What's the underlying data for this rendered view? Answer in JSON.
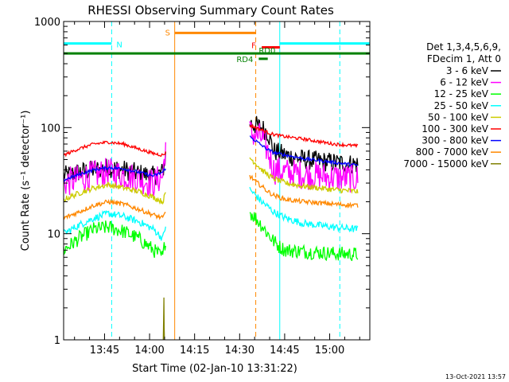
{
  "chart_data": {
    "type": "line",
    "title": "RHESSI Observing Summary Count Rates",
    "xlabel": "Start Time (02-Jan-10 13:31:22)",
    "ylabel": "Count Rate (s⁻¹ detector⁻¹)",
    "yscale": "log",
    "ylim": [
      1,
      1000
    ],
    "xlim_minutes_after_start": [
      0,
      102
    ],
    "x_ticks": [
      {
        "label": "13:45",
        "minutes": 13.63
      },
      {
        "label": "14:00",
        "minutes": 28.63
      },
      {
        "label": "14:15",
        "minutes": 43.63
      },
      {
        "label": "14:30",
        "minutes": 58.63
      },
      {
        "label": "14:45",
        "minutes": 73.63
      },
      {
        "label": "15:00",
        "minutes": 88.63
      }
    ],
    "y_ticks": [
      {
        "label": "1",
        "value": 1
      },
      {
        "label": "10",
        "value": 10
      },
      {
        "label": "100",
        "value": 100
      },
      {
        "label": "1000",
        "value": 1000
      }
    ],
    "legend": {
      "header": [
        "Det 1,3,4,5,6,9,",
        "FDecim 1, Att 0"
      ],
      "placement": "right"
    },
    "series": [
      {
        "name": "3 - 6 keV",
        "color": "#000000",
        "noise": 0.22,
        "segments": [
          {
            "x": [
              0,
              5,
              10,
              15,
              20,
              25,
              30,
              33,
              34
            ],
            "y": [
              35,
              38,
              40,
              42,
              40,
              37,
              35,
              38,
              55
            ]
          },
          {
            "x": [
              62,
              64,
              66,
              68,
              70,
              74,
              80,
              90,
              98
            ],
            "y": [
              110,
              105,
              100,
              90,
              60,
              55,
              50,
              47,
              45
            ]
          }
        ]
      },
      {
        "name": "6 - 12 keV",
        "color": "#ff00ff",
        "noise": 0.32,
        "segments": [
          {
            "x": [
              0,
              5,
              10,
              15,
              20,
              25,
              30,
              33,
              34
            ],
            "y": [
              30,
              33,
              36,
              38,
              36,
              33,
              30,
              35,
              70
            ]
          },
          {
            "x": [
              62,
              64,
              66,
              68,
              70,
              74,
              80,
              90,
              98
            ],
            "y": [
              90,
              85,
              80,
              60,
              40,
              38,
              36,
              34,
              33
            ]
          }
        ]
      },
      {
        "name": "12 - 25 keV",
        "color": "#00ff00",
        "noise": 0.16,
        "segments": [
          {
            "x": [
              0,
              5,
              10,
              15,
              20,
              25,
              30,
              33,
              34
            ],
            "y": [
              7,
              9,
              11,
              11.5,
              10.5,
              9,
              7,
              6,
              9
            ]
          },
          {
            "x": [
              62,
              64,
              66,
              68,
              70,
              72,
              74,
              80,
              90,
              98
            ],
            "y": [
              16,
              14,
              12,
              10,
              8.5,
              7.5,
              7,
              6.8,
              6.5,
              6.4
            ]
          }
        ]
      },
      {
        "name": "25 - 50 keV",
        "color": "#00ffff",
        "noise": 0.08,
        "segments": [
          {
            "x": [
              0,
              5,
              10,
              15,
              20,
              25,
              30,
              33,
              34
            ],
            "y": [
              10,
              12,
              14,
              15.5,
              14.5,
              13,
              11,
              9,
              12
            ]
          },
          {
            "x": [
              62,
              64,
              66,
              68,
              70,
              74,
              80,
              90,
              98
            ],
            "y": [
              26,
              23,
              20,
              18,
              16,
              14,
              12.5,
              11.5,
              11
            ]
          }
        ]
      },
      {
        "name": "50 - 100 keV",
        "color": "#cccc00",
        "noise": 0.06,
        "segments": [
          {
            "x": [
              0,
              5,
              10,
              15,
              20,
              25,
              30,
              33,
              34
            ],
            "y": [
              21,
              24,
              27,
              29,
              27,
              25,
              22,
              20,
              24
            ]
          },
          {
            "x": [
              62,
              64,
              66,
              68,
              70,
              74,
              80,
              90,
              98
            ],
            "y": [
              52,
              46,
              40,
              36,
              33,
              30,
              28,
              26,
              25
            ]
          }
        ]
      },
      {
        "name": "100 - 300 keV",
        "color": "#ff0000",
        "noise": 0.035,
        "segments": [
          {
            "x": [
              0,
              5,
              10,
              15,
              20,
              25,
              30,
              33,
              34
            ],
            "y": [
              55,
              63,
              70,
              73,
              70,
              63,
              57,
              55,
              58
            ]
          },
          {
            "x": [
              62,
              64,
              66,
              68,
              70,
              74,
              80,
              90,
              98
            ],
            "y": [
              105,
              100,
              95,
              90,
              86,
              82,
              78,
              70,
              67
            ]
          }
        ]
      },
      {
        "name": "300 - 800 keV",
        "color": "#0000ff",
        "noise": 0.035,
        "segments": [
          {
            "x": [
              0,
              5,
              10,
              15,
              20,
              25,
              30,
              33,
              34
            ],
            "y": [
              32,
              36,
              40,
              42,
              41,
              38,
              35,
              38,
              42
            ]
          },
          {
            "x": [
              62,
              64,
              66,
              68,
              70,
              74,
              80,
              90,
              98
            ],
            "y": [
              82,
              75,
              68,
              62,
              58,
              55,
              51,
              47,
              44
            ]
          }
        ]
      },
      {
        "name": "800 - 7000 keV",
        "color": "#ff8800",
        "noise": 0.05,
        "segments": [
          {
            "x": [
              0,
              5,
              10,
              15,
              20,
              25,
              30,
              33,
              34
            ],
            "y": [
              14,
              16,
              18.5,
              20,
              19,
              17,
              15,
              14,
              16
            ]
          },
          {
            "x": [
              62,
              64,
              66,
              68,
              70,
              74,
              80,
              90,
              98
            ],
            "y": [
              35,
              31,
              28,
              25,
              23,
              21,
              20,
              19,
              18.5
            ]
          }
        ]
      },
      {
        "name": "7000 - 15000 keV",
        "color": "#808000",
        "noise": 0.0,
        "segments": [
          {
            "x": [
              33.2,
              33.3,
              33.4,
              33.5,
              33.6
            ],
            "y": [
              1,
              1.5,
              2.5,
              1.3,
              1
            ]
          }
        ]
      }
    ],
    "flag_bars": [
      {
        "label": "N",
        "color": "#00ffff",
        "y": 620,
        "x_ranges": [
          [
            0,
            16
          ],
          [
            72,
            102
          ]
        ]
      },
      {
        "label": "S",
        "color": "#ff8800",
        "y": 780,
        "x_ranges": [
          [
            37,
            64
          ]
        ]
      },
      {
        "label": "F",
        "color": "#ff0000",
        "y": 570,
        "x_ranges": [
          [
            66,
            72
          ]
        ]
      },
      {
        "label": "RD0",
        "color": "#008000",
        "y": 500,
        "x_ranges": [
          [
            0,
            102
          ]
        ]
      },
      {
        "label": "RD4",
        "color": "#008000",
        "y": 445,
        "x_ranges": [
          [
            65,
            68
          ]
        ]
      }
    ],
    "markers": [
      {
        "color": "#00ffff",
        "style": "dashed",
        "x": 16
      },
      {
        "color": "#00ffff",
        "style": "dashed",
        "x": 92
      },
      {
        "color": "#00ffff",
        "style": "solid",
        "x": 0
      },
      {
        "color": "#00ffff",
        "style": "solid",
        "x": 72
      },
      {
        "color": "#ff8800",
        "style": "solid",
        "x": 37
      },
      {
        "color": "#ff8800",
        "style": "dashed",
        "x": 64
      }
    ],
    "grid": false
  },
  "footer": {
    "timestamp": "13-Oct-2021 13:57"
  }
}
